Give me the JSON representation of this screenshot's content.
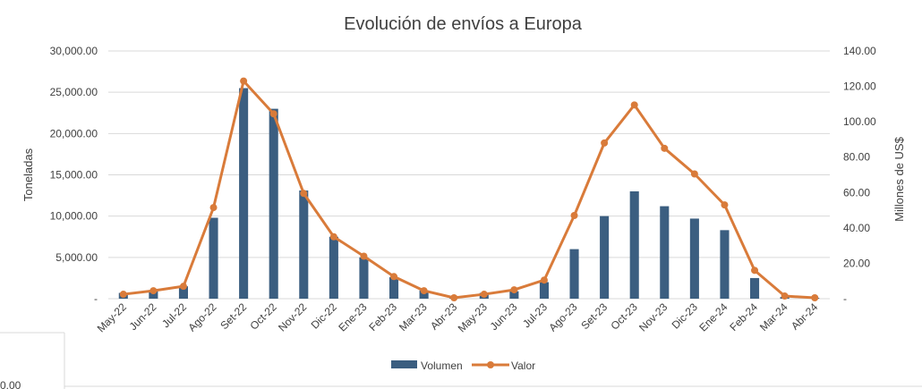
{
  "chart_data": {
    "type": "bar",
    "title": "Evolución de envíos a Europa",
    "categories": [
      "May-22",
      "Jun-22",
      "Jul-22",
      "Ago-22",
      "Set-22",
      "Oct-22",
      "Nov-22",
      "Dic-22",
      "Ene-23",
      "Feb-23",
      "Mar-23",
      "Abr-23",
      "May-23",
      "Jun-23",
      "Jul-23",
      "Ago-23",
      "Set-23",
      "Oct-23",
      "Nov-23",
      "Dic-23",
      "Ene-24",
      "Feb-24",
      "Mar-24",
      "Abr-24"
    ],
    "ylabel": "Toneladas",
    "y2label": "Millones de  US$",
    "ylim": [
      0,
      30000
    ],
    "y2lim": [
      0,
      140
    ],
    "yticks": [
      "-",
      "5,000.00",
      "10,000.00",
      "15,000.00",
      "20,000.00",
      "25,000.00",
      "30,000.00"
    ],
    "y2ticks": [
      "-",
      "20.00",
      "40.00",
      "60.00",
      "80.00",
      "100.00",
      "120.00",
      "140.00"
    ],
    "grid": true,
    "legend_position": "bottom",
    "series": [
      {
        "name": "Volumen",
        "type": "bar",
        "axis": "left",
        "color": "#3b5e80",
        "values": [
          700,
          900,
          1500,
          9800,
          25500,
          23000,
          13100,
          7500,
          5000,
          2600,
          1000,
          200,
          700,
          900,
          2000,
          6000,
          10000,
          13000,
          11200,
          9700,
          8300,
          2500,
          200,
          100
        ]
      },
      {
        "name": "Valor",
        "type": "line",
        "axis": "right",
        "color": "#d97b3a",
        "values": [
          2.5,
          4.5,
          7,
          51.5,
          123,
          104.5,
          59.5,
          35,
          24,
          12.5,
          4.5,
          0.5,
          2.5,
          5,
          10.5,
          47,
          88,
          109.5,
          85,
          70.5,
          53,
          16,
          1.5,
          0.5
        ]
      }
    ]
  },
  "side_fragment": "0.00"
}
